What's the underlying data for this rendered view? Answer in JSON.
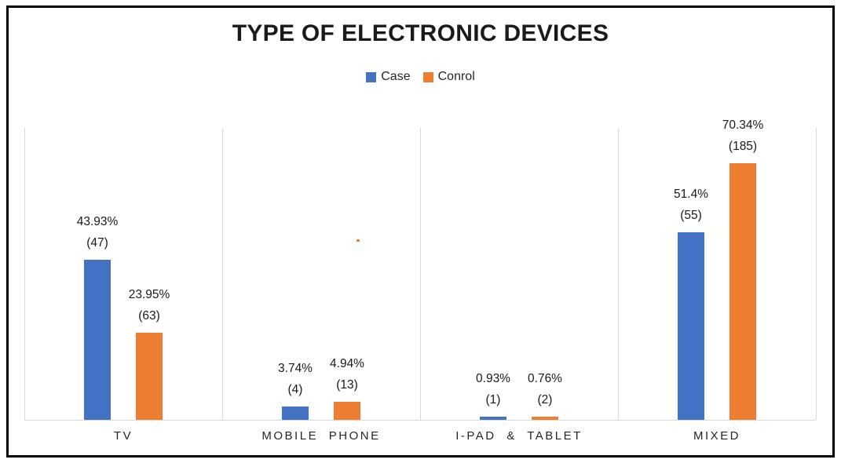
{
  "chart_data": {
    "type": "bar",
    "title": "TYPE OF ELECTRONIC DEVICES",
    "categories": [
      "TV",
      "MOBILE PHONE",
      "I-PAD & TABLET",
      "MIXED"
    ],
    "series": [
      {
        "name": "Case",
        "color": "#4472C4",
        "values": [
          43.93,
          3.74,
          0.93,
          51.4
        ],
        "counts": [
          47,
          4,
          1,
          55
        ],
        "pct_labels": [
          "43.93%",
          "3.74%",
          "0.93%",
          "51.4%"
        ],
        "count_labels": [
          "(47)",
          "(4)",
          "(1)",
          "(55)"
        ]
      },
      {
        "name": "Conrol",
        "color": "#ED7D31",
        "values": [
          23.95,
          4.94,
          0.76,
          70.34
        ],
        "counts": [
          63,
          13,
          2,
          185
        ],
        "pct_labels": [
          "23.95%",
          "4.94%",
          "0.76%",
          "70.34%"
        ],
        "count_labels": [
          "(63)",
          "(13)",
          "(2)",
          "(185)"
        ]
      }
    ],
    "ylim": [
      0,
      80
    ],
    "yaxis_visible": false,
    "grid": "vertical category separators only",
    "legend_position": "top-center",
    "data_label_format": "percent above (count)"
  },
  "styles": {
    "background": "#FFFFFF",
    "frame_border_color": "#000000",
    "gridline_color": "#D9D9D9",
    "text_color": "#1A1A1A",
    "stray_dot_color": "#ED7D31"
  }
}
